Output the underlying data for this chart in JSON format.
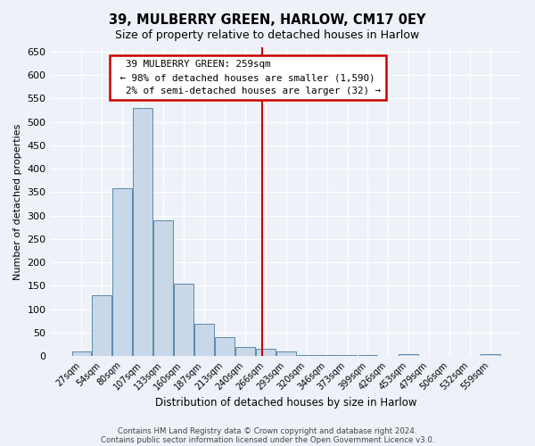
{
  "title": "39, MULBERRY GREEN, HARLOW, CM17 0EY",
  "subtitle": "Size of property relative to detached houses in Harlow",
  "xlabel": "Distribution of detached houses by size in Harlow",
  "ylabel": "Number of detached properties",
  "categories": [
    "27sqm",
    "54sqm",
    "80sqm",
    "107sqm",
    "133sqm",
    "160sqm",
    "187sqm",
    "213sqm",
    "240sqm",
    "266sqm",
    "293sqm",
    "320sqm",
    "346sqm",
    "373sqm",
    "399sqm",
    "426sqm",
    "453sqm",
    "479sqm",
    "506sqm",
    "532sqm",
    "559sqm"
  ],
  "values": [
    10,
    130,
    358,
    530,
    290,
    155,
    68,
    40,
    20,
    15,
    9,
    3,
    3,
    3,
    3,
    0,
    5,
    0,
    0,
    0,
    5
  ],
  "bar_color": "#c8d8e8",
  "bar_edge_color": "#5a8aaa",
  "background_color": "#eef2f8",
  "grid_color": "#ffffff",
  "vline_index": 8.85,
  "vline_color": "#cc0000",
  "annotation_text": "  39 MULBERRY GREEN: 259sqm  \n ← 98% of detached houses are smaller (1,590)\n  2% of semi-detached houses are larger (32) →",
  "annotation_box_color": "#ffffff",
  "annotation_box_edge_color": "#cc0000",
  "ylim": [
    0,
    660
  ],
  "yticks": [
    0,
    50,
    100,
    150,
    200,
    250,
    300,
    350,
    400,
    450,
    500,
    550,
    600,
    650
  ],
  "footer_line1": "Contains HM Land Registry data © Crown copyright and database right 2024.",
  "footer_line2": "Contains public sector information licensed under the Open Government Licence v3.0."
}
